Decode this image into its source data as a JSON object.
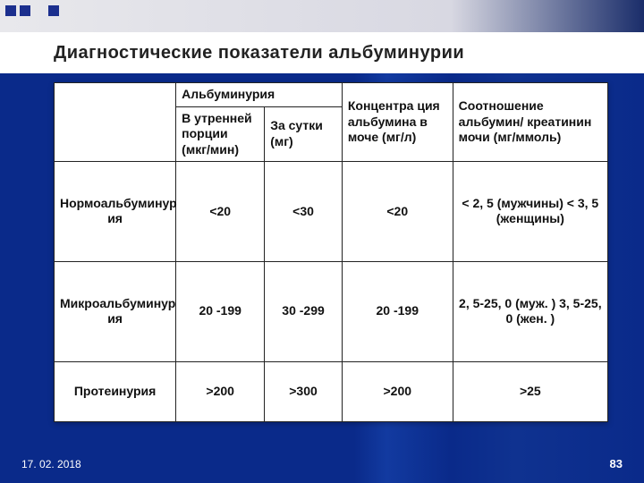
{
  "title": "Диагностические показатели альбуминурии",
  "footer": {
    "date": "17. 02. 2018",
    "page": "83"
  },
  "table": {
    "headerRow1": {
      "blank": "",
      "albuminuria": "Альбуминурия",
      "concentration": "Концентра ция альбумина в моче (мг/л)",
      "ratio": "Соотношение альбумин/ креатинин мочи (мг/ммоль)"
    },
    "headerRow2": {
      "morning": "В утренней порции (мкг/мин)",
      "perDay": "За сутки (мг)"
    },
    "rows": [
      {
        "label": "Нормоальбуминур ия",
        "c1": "<20",
        "c2": "<30",
        "c3": "<20",
        "c4": "< 2, 5 (мужчины) < 3, 5 (женщины)"
      },
      {
        "label": "Микроальбуминур ия",
        "c1": "20 -199",
        "c2": "30 -299",
        "c3": "20 -199",
        "c4": "2, 5-25, 0 (муж. ) 3, 5-25, 0 (жен. )"
      },
      {
        "label": "Протеинурия",
        "c1": ">200",
        "c2": ">300",
        "c3": ">200",
        "c4": ">25"
      }
    ]
  },
  "style": {
    "background_gradient": [
      "#0a2a8a",
      "#123aa0"
    ],
    "panel_bg": "#ffffff",
    "border_color": "#222222",
    "text_color": "#111111",
    "title_fontsize": 20,
    "cell_fontsize": 14,
    "footer_fontsize": 12
  }
}
